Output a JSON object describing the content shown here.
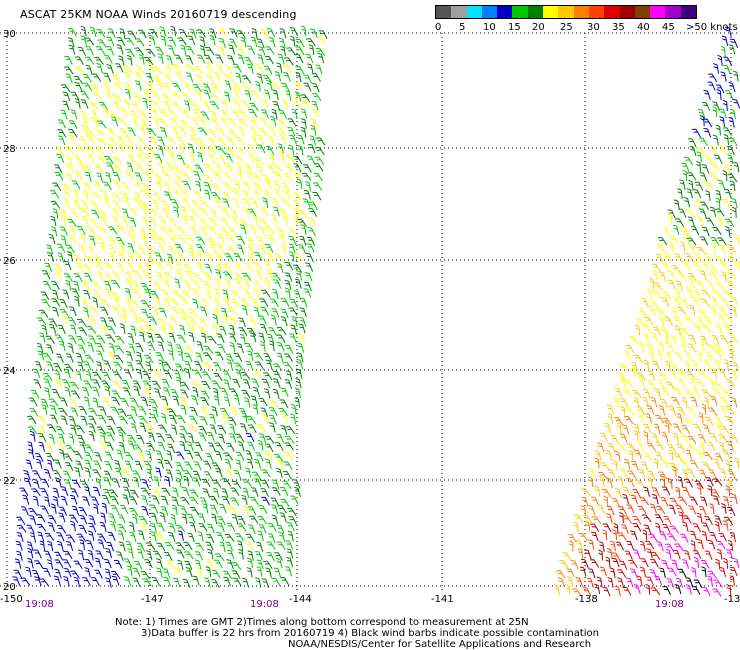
{
  "title": "ASCAT 25KM NOAA Winds 20160719 descending",
  "colorbar": {
    "colors": [
      "#555555",
      "#a0a0a0",
      "#00e5ff",
      "#0080ff",
      "#0000c8",
      "#00c800",
      "#008000",
      "#ffff00",
      "#ffc800",
      "#ff8000",
      "#ff4000",
      "#e00000",
      "#a00000",
      "#804000",
      "#ff00ff",
      "#a000c8",
      "#400080"
    ],
    "labels": [
      "0",
      "5",
      "10",
      "15",
      "20",
      "25",
      "30",
      "35",
      "40",
      "45",
      ">50 knots"
    ]
  },
  "axes": {
    "lon_ticks": [
      "-150",
      "-147",
      "-144",
      "-141",
      "-138",
      "-13"
    ],
    "lat_ticks": [
      "30",
      "28",
      "26",
      "24",
      "22",
      "20"
    ]
  },
  "times": [
    "19:08",
    "19:08",
    "19:08"
  ],
  "note": {
    "line1": "Note: 1) Times are GMT 2)Times along bottom correspond to measurement at 25N",
    "line2": "3)Data buffer is 22 hrs from 20160719 4) Black wind barbs indicate possible contamination",
    "line3": "NOAA/NESDIS/Center for Satellite Applications and Research"
  }
}
